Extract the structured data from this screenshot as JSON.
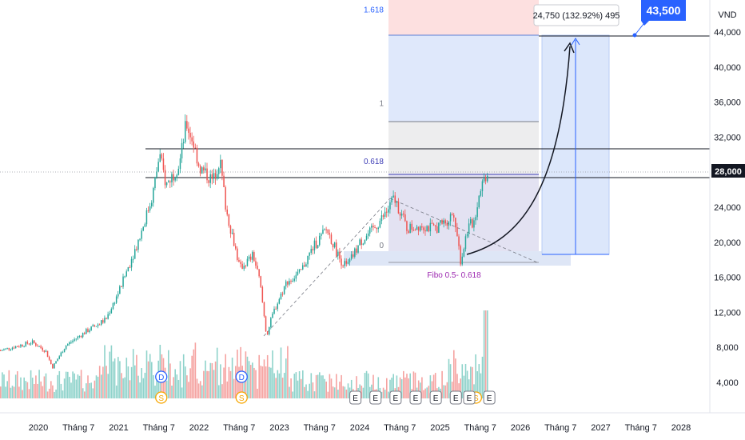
{
  "chart_data": {
    "type": "candlestick",
    "currency": "VND",
    "last_price": "28,000",
    "target_price": "43,500",
    "measure_label": "24,750 (132.92%) 495",
    "ylim": [
      0,
      46000
    ],
    "y_ticks": [
      {
        "value": 4000,
        "label": "4,000"
      },
      {
        "value": 8000,
        "label": "8,000"
      },
      {
        "value": 12000,
        "label": "12,000"
      },
      {
        "value": 16000,
        "label": "16,000"
      },
      {
        "value": 20000,
        "label": "20,000"
      },
      {
        "value": 24000,
        "label": "24,000"
      },
      {
        "value": 32000,
        "label": "32,000"
      },
      {
        "value": 36000,
        "label": "36,000"
      },
      {
        "value": 40000,
        "label": "40,000"
      },
      {
        "value": 44000,
        "label": "44,000"
      }
    ],
    "x_ticks": [
      {
        "date": "2020-01",
        "label": "2020"
      },
      {
        "date": "2020-07",
        "label": "Tháng 7"
      },
      {
        "date": "2021-01",
        "label": "2021"
      },
      {
        "date": "2021-07",
        "label": "Tháng 7"
      },
      {
        "date": "2022-01",
        "label": "2022"
      },
      {
        "date": "2022-07",
        "label": "Tháng 7"
      },
      {
        "date": "2023-01",
        "label": "2023"
      },
      {
        "date": "2023-07",
        "label": "Tháng 7"
      },
      {
        "date": "2024-01",
        "label": "2024"
      },
      {
        "date": "2024-07",
        "label": "Tháng 7"
      },
      {
        "date": "2025-01",
        "label": "2025"
      },
      {
        "date": "2025-07",
        "label": "Tháng 7"
      },
      {
        "date": "2026-01",
        "label": "2026"
      },
      {
        "date": "2026-07",
        "label": "Tháng 7"
      },
      {
        "date": "2027-01",
        "label": "2027"
      },
      {
        "date": "2027-07",
        "label": "Tháng 7"
      },
      {
        "date": "2028-01",
        "label": "2028"
      }
    ],
    "price_path": [
      [
        "2019-06",
        7400
      ],
      [
        "2019-09",
        8000
      ],
      [
        "2019-12",
        8600
      ],
      [
        "2020-02",
        7600
      ],
      [
        "2020-03",
        5700
      ],
      [
        "2020-05",
        8200
      ],
      [
        "2020-08",
        9800
      ],
      [
        "2020-11",
        11200
      ],
      [
        "2021-01",
        14500
      ],
      [
        "2021-04",
        20500
      ],
      [
        "2021-06",
        25500
      ],
      [
        "2021-07",
        30000
      ],
      [
        "2021-08",
        26500
      ],
      [
        "2021-10",
        29000
      ],
      [
        "2021-11",
        33600
      ],
      [
        "2021-12",
        31500
      ],
      [
        "2022-01",
        28500
      ],
      [
        "2022-03",
        27000
      ],
      [
        "2022-04",
        29500
      ],
      [
        "2022-05",
        23500
      ],
      [
        "2022-06",
        20500
      ],
      [
        "2022-07",
        17000
      ],
      [
        "2022-09",
        18500
      ],
      [
        "2022-10",
        15500
      ],
      [
        "2022-11",
        9300
      ],
      [
        "2022-12",
        12000
      ],
      [
        "2023-02",
        15500
      ],
      [
        "2023-04",
        16500
      ],
      [
        "2023-06",
        19500
      ],
      [
        "2023-08",
        21500
      ],
      [
        "2023-10",
        18000
      ],
      [
        "2023-11",
        17200
      ],
      [
        "2024-01",
        20000
      ],
      [
        "2024-03",
        21500
      ],
      [
        "2024-05",
        23500
      ],
      [
        "2024-06",
        25000
      ],
      [
        "2024-07",
        23500
      ],
      [
        "2024-08",
        21500
      ],
      [
        "2024-10",
        22000
      ],
      [
        "2024-12",
        21500
      ],
      [
        "2025-02",
        22500
      ],
      [
        "2025-03",
        23500
      ],
      [
        "2025-04",
        17800
      ],
      [
        "2025-05",
        21500
      ],
      [
        "2025-06",
        22500
      ],
      [
        "2025-07",
        26500
      ],
      [
        "2025-08",
        28000
      ]
    ],
    "fibonacci": {
      "name": "Fibo 0.5- 0.618",
      "levels": [
        {
          "level": "0",
          "price": 17500
        },
        {
          "level": "0.618",
          "price": 28200
        },
        {
          "level": "1",
          "price": 34800
        },
        {
          "level": "1.618",
          "price": 45500
        }
      ]
    },
    "horizontal_lines": [
      30800,
      27600
    ],
    "events": {
      "dividends": [
        {
          "date": "2021-07",
          "label": "D"
        },
        {
          "date": "2022-07",
          "label": "D"
        }
      ],
      "splits": [
        {
          "date": "2021-07",
          "label": "S"
        },
        {
          "date": "2022-07",
          "label": "S"
        },
        {
          "date": "2025-06",
          "label": "S"
        }
      ],
      "earnings": [
        {
          "date": "2023-12",
          "label": "E"
        },
        {
          "date": "2024-03",
          "label": "E"
        },
        {
          "date": "2024-06",
          "label": "E"
        },
        {
          "date": "2024-09",
          "label": "E"
        },
        {
          "date": "2024-12",
          "label": "E"
        },
        {
          "date": "2025-03",
          "label": "E"
        },
        {
          "date": "2025-05",
          "label": "E"
        },
        {
          "date": "2025-08",
          "label": "E"
        }
      ]
    },
    "colors": {
      "up": "#26a69a",
      "down": "#ef5350",
      "fib_label": "#2962ff",
      "fib_name": "#9c27b0",
      "target_badge": "#2962ff",
      "last_price_badge": "#131722"
    }
  }
}
